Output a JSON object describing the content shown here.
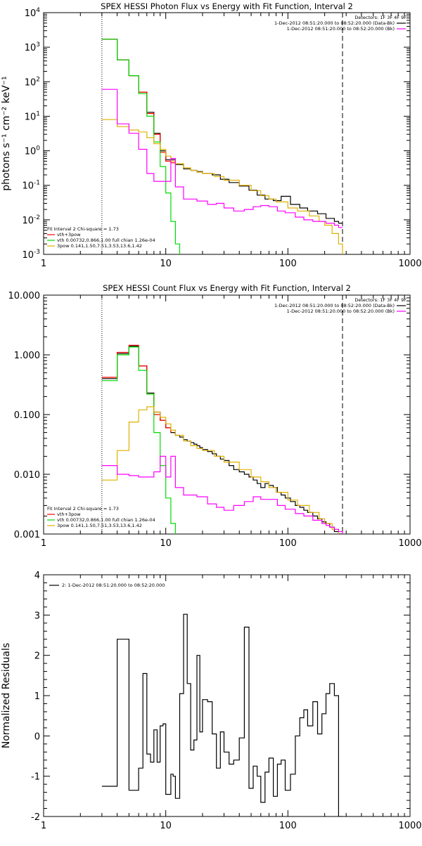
{
  "chart_data": [
    {
      "type": "line",
      "title": "SPEX HESSI Photon Flux vs Energy with Fit Function, Interval 2",
      "xlabel": "",
      "ylabel": "photons s⁻¹ cm⁻² keV⁻¹",
      "xscale": "log",
      "yscale": "log",
      "xlim": [
        1,
        1000
      ],
      "ylim": [
        0.001,
        10000
      ],
      "xticks": [
        "1",
        "10",
        "100",
        "1000"
      ],
      "yticks": [
        "10⁻³",
        "10⁻²",
        "10⁻¹",
        "10⁰",
        "10¹",
        "10²",
        "10³",
        "10⁴"
      ],
      "vlines": [
        3,
        280
      ],
      "legend_top": [
        "Detectors: 1F 3F 4F 9F",
        "1-Dec-2012 08:51:20.000 to 08:52:20.000 (Data-Bk)",
        "1-Dec-2012 08:51:20.000 to 08:52:20.000 (Bk)"
      ],
      "legend_top_colors": [
        "#000000",
        "#000000",
        "#ff00ff"
      ],
      "legend_bottom": [
        "Fit Interval  2   Chi-square = 1.73",
        "vth+3pow",
        "vth 0.00732,0.866,1.00  full chian 1.26e-04",
        "3pow 0.141,1.50,7.51,3.53,13.6,1.42"
      ],
      "legend_bottom_colors": [
        "#000000",
        "#ff0000",
        "#00dd00",
        "#e0b000"
      ],
      "series": [
        {
          "name": "Data-Bk",
          "color": "#000000",
          "x": [
            3,
            3.5,
            4,
            4.5,
            5,
            5.5,
            6,
            6.5,
            7,
            7.5,
            8,
            8.5,
            9,
            9.5,
            10,
            11,
            12,
            13,
            14,
            15,
            16,
            17,
            18,
            19,
            20,
            22,
            24,
            26,
            28,
            30,
            33,
            36,
            40,
            44,
            48,
            52,
            56,
            60,
            65,
            70,
            76,
            82,
            88,
            95,
            105,
            115,
            125,
            135,
            145,
            160,
            175,
            190,
            205,
            220,
            240,
            260,
            280
          ],
          "y": [
            1700,
            1700,
            430,
            430,
            150,
            150,
            50,
            50,
            13,
            13,
            3.2,
            3.2,
            1.0,
            1.0,
            0.55,
            0.55,
            0.4,
            0.4,
            0.3,
            0.3,
            0.27,
            0.27,
            0.25,
            0.25,
            0.22,
            0.22,
            0.2,
            0.2,
            0.15,
            0.15,
            0.12,
            0.12,
            0.095,
            0.095,
            0.072,
            0.072,
            0.052,
            0.052,
            0.04,
            0.04,
            0.036,
            0.036,
            0.048,
            0.048,
            0.028,
            0.028,
            0.022,
            0.022,
            0.018,
            0.018,
            0.015,
            0.015,
            0.011,
            0.011,
            0.009,
            0.008,
            0.008
          ]
        },
        {
          "name": "vth+3pow",
          "color": "#ff0000",
          "x": [
            3,
            4,
            5,
            6,
            7,
            8,
            9,
            10,
            11,
            12
          ],
          "y": [
            1700,
            430,
            150,
            50,
            12,
            3.0,
            0.9,
            0.5,
            0.45,
            0.4
          ]
        },
        {
          "name": "vth",
          "color": "#00dd00",
          "x": [
            3,
            3.5,
            4,
            4.5,
            5,
            5.5,
            6,
            6.5,
            7,
            7.5,
            8,
            8.5,
            9,
            9.5,
            10,
            10.5,
            11,
            11.5,
            12,
            12.5,
            13,
            14
          ],
          "y": [
            1700,
            1700,
            430,
            430,
            150,
            150,
            45,
            45,
            10,
            10,
            1.8,
            1.8,
            0.35,
            0.35,
            0.06,
            0.06,
            0.009,
            0.009,
            0.002,
            0.002,
            0.0005,
            0.0005
          ]
        },
        {
          "name": "3pow",
          "color": "#e0b000",
          "x": [
            3,
            3.5,
            4,
            4.5,
            5,
            5.5,
            6,
            6.5,
            7,
            7.5,
            8,
            8.5,
            9,
            9.5,
            10,
            11,
            12,
            14,
            16,
            18,
            20,
            25,
            30,
            40,
            50,
            60,
            70,
            80,
            100,
            120,
            150,
            180,
            200,
            230,
            260,
            280
          ],
          "y": [
            8.0,
            8.0,
            5.0,
            5.0,
            4.0,
            4.0,
            3.5,
            3.5,
            2.4,
            2.4,
            1.6,
            1.6,
            1.1,
            1.1,
            0.7,
            0.5,
            0.42,
            0.32,
            0.27,
            0.24,
            0.22,
            0.18,
            0.14,
            0.1,
            0.07,
            0.05,
            0.04,
            0.033,
            0.022,
            0.018,
            0.013,
            0.009,
            0.007,
            0.004,
            0.002,
            0.001
          ]
        },
        {
          "name": "Bk",
          "color": "#ff00ff",
          "x": [
            3,
            3.5,
            4,
            4.5,
            5,
            5.5,
            6,
            6.5,
            7,
            7.5,
            8,
            8.5,
            9,
            9.5,
            10,
            11,
            12,
            13,
            14,
            16,
            18,
            20,
            22,
            24,
            26,
            28,
            30,
            33,
            36,
            40,
            44,
            48,
            52,
            56,
            60,
            65,
            70,
            76,
            82,
            88,
            95,
            105,
            115,
            125,
            135,
            145,
            160,
            175,
            190,
            205,
            220,
            240,
            260,
            280
          ],
          "y": [
            60,
            60,
            6,
            6,
            3.2,
            3.2,
            1.1,
            1.1,
            0.22,
            0.22,
            0.13,
            0.13,
            0.13,
            0.13,
            0.13,
            0.6,
            0.09,
            0.09,
            0.04,
            0.04,
            0.035,
            0.035,
            0.028,
            0.028,
            0.03,
            0.03,
            0.022,
            0.022,
            0.018,
            0.018,
            0.02,
            0.02,
            0.024,
            0.024,
            0.026,
            0.026,
            0.024,
            0.024,
            0.018,
            0.018,
            0.016,
            0.016,
            0.012,
            0.012,
            0.01,
            0.01,
            0.009,
            0.009,
            0.009,
            0.008,
            0.008,
            0.007,
            0.006,
            0.006
          ]
        }
      ]
    },
    {
      "type": "line",
      "title": "SPEX HESSI Count Flux vs Energy with Fit Function, Interval 2",
      "xlabel": "",
      "ylabel": "",
      "xscale": "log",
      "yscale": "log",
      "xlim": [
        1,
        1000
      ],
      "ylim": [
        0.001,
        10
      ],
      "xticks": [
        "1",
        "10",
        "100",
        "1000"
      ],
      "yticks": [
        "0.001",
        "0.010",
        "0.100",
        "1.000",
        "10.000"
      ],
      "vlines": [
        3,
        280
      ],
      "legend_top": [
        "Detectors: 1F 3F 4F 9F",
        "1-Dec-2012 08:51:20.000 to 08:52:20.000 (Data-Bk)",
        "1-Dec-2012 08:51:20.000 to 08:52:20.000 (Bk)"
      ],
      "legend_top_colors": [
        "#000000",
        "#000000",
        "#ff00ff"
      ],
      "legend_bottom": [
        "Fit Interval  2   Chi-square = 1.73",
        "vth+3pow",
        "vth 0.00732,0.866,1.00  full chian 1.26e-04",
        "3pow 0.141,1.50,7.51,3.53,13.6,1.42"
      ],
      "legend_bottom_colors": [
        "#000000",
        "#ff0000",
        "#00dd00",
        "#e0b000"
      ],
      "series": [
        {
          "name": "Data-Bk",
          "color": "#000000",
          "x": [
            3,
            3.5,
            4,
            4.5,
            5,
            5.5,
            6,
            6.5,
            7,
            7.5,
            8,
            8.5,
            9,
            9.5,
            10,
            11,
            12,
            13,
            14,
            15,
            16,
            17,
            18,
            19,
            20,
            22,
            24,
            26,
            28,
            30,
            33,
            36,
            40,
            44,
            48,
            52,
            56,
            60,
            65,
            70,
            76,
            82,
            88,
            95,
            105,
            115,
            125,
            135,
            145,
            160,
            175,
            190,
            205,
            220,
            240,
            260,
            280
          ],
          "y": [
            0.4,
            0.4,
            1.05,
            1.05,
            1.4,
            1.4,
            0.65,
            0.65,
            0.23,
            0.23,
            0.11,
            0.11,
            0.08,
            0.08,
            0.06,
            0.05,
            0.045,
            0.042,
            0.038,
            0.036,
            0.034,
            0.032,
            0.03,
            0.028,
            0.026,
            0.024,
            0.022,
            0.02,
            0.018,
            0.017,
            0.014,
            0.012,
            0.011,
            0.01,
            0.009,
            0.008,
            0.007,
            0.006,
            0.007,
            0.0065,
            0.006,
            0.005,
            0.0045,
            0.004,
            0.0035,
            0.003,
            0.0028,
            0.0025,
            0.0023,
            0.002,
            0.0018,
            0.0016,
            0.0015,
            0.0013,
            0.0011,
            0.001,
            0.001
          ]
        },
        {
          "name": "vth+3pow",
          "color": "#ff0000",
          "x": [
            3,
            4,
            5,
            6,
            7,
            8,
            9,
            10,
            11
          ],
          "y": [
            0.42,
            1.1,
            1.45,
            0.65,
            0.22,
            0.1,
            0.08,
            0.06,
            0.05
          ]
        },
        {
          "name": "vth",
          "color": "#00dd00",
          "x": [
            3,
            3.5,
            4,
            4.5,
            5,
            5.5,
            6,
            6.5,
            7,
            7.5,
            8,
            8.5,
            9,
            9.5,
            10,
            10.5,
            11,
            11.5,
            12
          ],
          "y": [
            0.37,
            0.37,
            1.0,
            1.0,
            1.35,
            1.35,
            0.55,
            0.55,
            0.22,
            0.22,
            0.05,
            0.05,
            0.014,
            0.014,
            0.004,
            0.004,
            0.0015,
            0.0015,
            0.0008
          ]
        },
        {
          "name": "3pow",
          "color": "#e0b000",
          "x": [
            3,
            3.5,
            4,
            4.5,
            5,
            5.5,
            6,
            6.5,
            7,
            7.5,
            8,
            8.5,
            9,
            9.5,
            10,
            11,
            12,
            14,
            16,
            18,
            20,
            25,
            30,
            40,
            50,
            60,
            70,
            80,
            100,
            120,
            150,
            180,
            200,
            230,
            260,
            280
          ],
          "y": [
            0.008,
            0.008,
            0.025,
            0.025,
            0.075,
            0.075,
            0.12,
            0.12,
            0.135,
            0.135,
            0.11,
            0.11,
            0.09,
            0.09,
            0.07,
            0.055,
            0.045,
            0.036,
            0.03,
            0.027,
            0.025,
            0.02,
            0.016,
            0.012,
            0.009,
            0.0075,
            0.006,
            0.005,
            0.0037,
            0.003,
            0.0023,
            0.0018,
            0.0015,
            0.0012,
            0.0009,
            0.0008
          ]
        },
        {
          "name": "Bk",
          "color": "#ff00ff",
          "x": [
            3,
            3.5,
            4,
            4.5,
            5,
            5.5,
            6,
            6.5,
            7,
            7.5,
            8,
            8.5,
            9,
            9.5,
            10,
            11,
            12,
            13,
            14,
            16,
            18,
            20,
            22,
            24,
            26,
            28,
            30,
            33,
            36,
            40,
            44,
            48,
            52,
            56,
            60,
            65,
            70,
            76,
            82,
            88,
            95,
            105,
            115,
            125,
            135,
            145,
            160,
            175,
            190,
            205,
            220,
            240,
            260,
            280
          ],
          "y": [
            0.014,
            0.014,
            0.01,
            0.01,
            0.0095,
            0.0095,
            0.009,
            0.009,
            0.009,
            0.009,
            0.011,
            0.011,
            0.02,
            0.02,
            0.009,
            0.02,
            0.006,
            0.006,
            0.0045,
            0.0045,
            0.0042,
            0.0042,
            0.0032,
            0.0032,
            0.0028,
            0.0028,
            0.0025,
            0.0025,
            0.003,
            0.003,
            0.0035,
            0.0035,
            0.0042,
            0.0042,
            0.0038,
            0.0038,
            0.0038,
            0.0038,
            0.003,
            0.003,
            0.0026,
            0.0026,
            0.0022,
            0.0022,
            0.002,
            0.002,
            0.0017,
            0.0017,
            0.0015,
            0.0014,
            0.0013,
            0.0012,
            0.0011,
            0.001
          ]
        }
      ]
    },
    {
      "type": "line",
      "title": "",
      "xlabel": "",
      "ylabel": "Normalized Residuals",
      "xscale": "log",
      "yscale": "linear",
      "xlim": [
        1,
        1000
      ],
      "ylim": [
        -2,
        4
      ],
      "xticks": [
        "1",
        "10",
        "100",
        "1000"
      ],
      "yticks": [
        "-2",
        "-1",
        "0",
        "1",
        "2",
        "3",
        "4"
      ],
      "legend_top": [
        "2: 1-Dec-2012 08:51:20.000 to 08:52:20.000"
      ],
      "series": [
        {
          "name": "2: 1-Dec-2012 08:51:20.000 to 08:52:20.000",
          "color": "#000000",
          "x": [
            3,
            4,
            4.5,
            5,
            5.5,
            6,
            6.5,
            7,
            7.5,
            8,
            8.5,
            9,
            9.5,
            10,
            10.5,
            11,
            11.5,
            12,
            13,
            14,
            15,
            16,
            17,
            18,
            19,
            20,
            22,
            24,
            26,
            28,
            30,
            33,
            36,
            40,
            44,
            48,
            52,
            56,
            60,
            65,
            70,
            76,
            82,
            88,
            95,
            105,
            115,
            125,
            135,
            145,
            160,
            175,
            190,
            205,
            220,
            240,
            260,
            280
          ],
          "y": [
            -1.25,
            2.4,
            2.4,
            -1.35,
            -1.35,
            -0.8,
            1.55,
            -0.45,
            -0.65,
            0.15,
            -0.65,
            0.25,
            0.3,
            -1.45,
            -1.45,
            -0.95,
            -1.0,
            -1.55,
            1.05,
            3.02,
            1.3,
            -0.35,
            -0.1,
            2.0,
            0.1,
            0.9,
            0.85,
            0.05,
            -0.8,
            0.1,
            -0.4,
            -0.7,
            -0.6,
            -0.05,
            2.7,
            -1.3,
            -0.75,
            -1.0,
            -1.65,
            -0.9,
            -0.55,
            -1.5,
            -0.7,
            -0.6,
            -1.35,
            -0.95,
            0.0,
            0.45,
            0.65,
            0.25,
            0.85,
            0.05,
            0.55,
            1.05,
            1.3,
            1.0,
            -2.0,
            -2.0
          ]
        }
      ]
    }
  ]
}
